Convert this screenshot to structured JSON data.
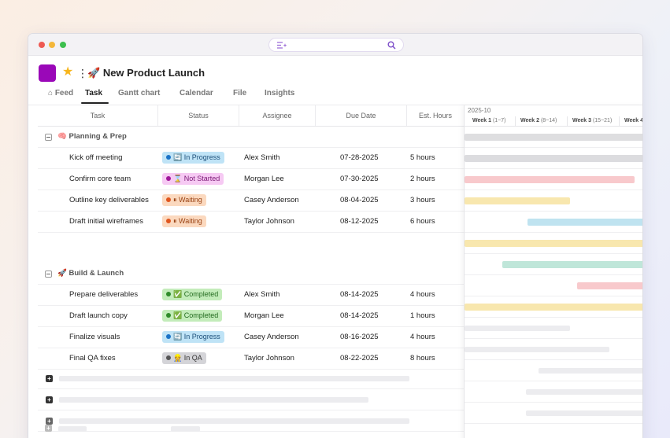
{
  "project": {
    "title": "New Product Launch",
    "accent": "#9a08b8"
  },
  "tabs": [
    {
      "label": "Feed",
      "icon": "home-icon"
    },
    {
      "label": "Task",
      "active": true
    },
    {
      "label": "Gantt chart"
    },
    {
      "label": "Calendar"
    },
    {
      "label": "File"
    },
    {
      "label": "Insights"
    }
  ],
  "columns": {
    "task": "Task",
    "status": "Status",
    "assignee": "Assignee",
    "due": "Due Date",
    "hours": "Est. Hours"
  },
  "groups": [
    {
      "label": "Planning & Prep",
      "emoji": "🧠",
      "tasks": [
        {
          "name": "Kick off meeting",
          "status": "In Progress",
          "status_emoji": "🔄",
          "assignee": "Alex Smith",
          "due": "07-28-2025",
          "hours": "5 hours"
        },
        {
          "name": "Confirm core team",
          "status": "Not Started",
          "status_emoji": "⌛",
          "assignee": "Morgan Lee",
          "due": "07-30-2025",
          "hours": "2 hours"
        },
        {
          "name": "Outline key deliverables",
          "status": "Waiting",
          "status_emoji": "⏸",
          "assignee": "Casey Anderson",
          "due": "08-04-2025",
          "hours": "3 hours"
        },
        {
          "name": "Draft initial wireframes",
          "status": "Waiting",
          "status_emoji": "⏸",
          "assignee": "Taylor Johnson",
          "due": "08-12-2025",
          "hours": "6 hours"
        }
      ]
    },
    {
      "label": "Build & Launch",
      "emoji": "🚀",
      "tasks": [
        {
          "name": "Prepare deliverables",
          "status": "Completed",
          "status_emoji": "✅",
          "assignee": "Alex Smith",
          "due": "08-14-2025",
          "hours": "4 hours"
        },
        {
          "name": "Draft launch copy",
          "status": "Completed",
          "status_emoji": "✅",
          "assignee": "Morgan Lee",
          "due": "08-14-2025",
          "hours": "1 hours"
        },
        {
          "name": "Finalize visuals",
          "status": "In Progress",
          "status_emoji": "🔄",
          "assignee": "Casey Anderson",
          "due": "08-16-2025",
          "hours": "4 hours"
        },
        {
          "name": "Final QA fixes",
          "status": "In QA",
          "status_emoji": "👷",
          "assignee": "Taylor Johnson",
          "due": "08-22-2025",
          "hours": "8 hours"
        }
      ]
    }
  ],
  "status_styles": {
    "In Progress": {
      "bg": "#bfe3f6",
      "dot": "#1a73c8",
      "text": "#1d4f7a"
    },
    "Not Started": {
      "bg": "#f6c9f3",
      "dot": "#a0159a",
      "text": "#7a1774"
    },
    "Waiting": {
      "bg": "#fbd9bf",
      "dot": "#e0561f",
      "text": "#9a4314"
    },
    "Completed": {
      "bg": "#c3ecba",
      "dot": "#2f8b2a",
      "text": "#236b1f"
    },
    "In QA": {
      "bg": "#d4d4d8",
      "dot": "#555",
      "text": "#333"
    }
  },
  "gantt": {
    "month": "2025-10",
    "weeks": [
      {
        "label": "Week 1",
        "range": "(1~7)"
      },
      {
        "label": "Week 2",
        "range": "(8~14)"
      },
      {
        "label": "Week 3",
        "range": "(15~21)"
      },
      {
        "label": "Week 4",
        "range": "("
      }
    ]
  }
}
